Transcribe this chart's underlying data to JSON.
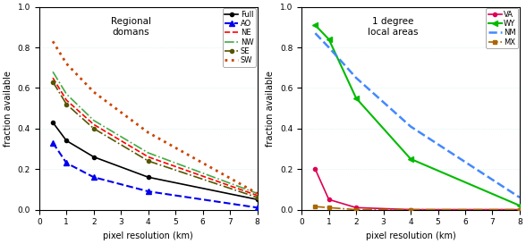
{
  "left": {
    "title": "Regional\ndomans",
    "xlabel": "pixel resolution (km)",
    "ylabel": "fraction available",
    "xlim": [
      0,
      8
    ],
    "ylim": [
      0,
      1
    ],
    "x_ticks": [
      0,
      1,
      2,
      3,
      4,
      5,
      6,
      7,
      8
    ],
    "y_ticks": [
      0,
      0.2,
      0.4,
      0.6,
      0.8,
      1.0
    ],
    "series": {
      "Full": {
        "x": [
          0.5,
          1,
          2,
          4,
          8
        ],
        "y": [
          0.43,
          0.34,
          0.26,
          0.16,
          0.05
        ],
        "color": "#000000",
        "linestyle": "-",
        "marker": "o",
        "markersize": 3,
        "linewidth": 1.2
      },
      "AO": {
        "x": [
          0.5,
          1,
          2,
          4,
          8
        ],
        "y": [
          0.33,
          0.23,
          0.16,
          0.09,
          0.01
        ],
        "color": "#0000ee",
        "linestyle": "--",
        "marker": "^",
        "markersize": 4,
        "linewidth": 1.5
      },
      "NE": {
        "x": [
          0.5,
          1,
          2,
          4,
          8
        ],
        "y": [
          0.65,
          0.54,
          0.42,
          0.26,
          0.07
        ],
        "color": "#ff0000",
        "linestyle": "--",
        "marker": null,
        "markersize": 3,
        "linewidth": 1.2
      },
      "NW": {
        "x": [
          0.5,
          1,
          2,
          4,
          8
        ],
        "y": [
          0.68,
          0.57,
          0.44,
          0.28,
          0.08
        ],
        "color": "#44aa44",
        "linestyle": "-.",
        "marker": null,
        "markersize": 3,
        "linewidth": 1.2
      },
      "SE": {
        "x": [
          0.5,
          1,
          2,
          4,
          8
        ],
        "y": [
          0.63,
          0.52,
          0.4,
          0.24,
          0.06
        ],
        "color": "#555500",
        "linestyle": "-.",
        "marker": "o",
        "markersize": 3,
        "linewidth": 1.2
      },
      "SW": {
        "x": [
          0.5,
          1,
          2,
          4,
          8
        ],
        "y": [
          0.83,
          0.72,
          0.58,
          0.38,
          0.08
        ],
        "color": "#cc4400",
        "linestyle": ":",
        "marker": null,
        "markersize": 3,
        "linewidth": 2.0
      }
    },
    "legend_loc": "upper right"
  },
  "right": {
    "title": "1 degree\nlocal areas",
    "xlabel": "pixel resolution (km)",
    "ylabel": "fraction available",
    "xlim": [
      0,
      8
    ],
    "ylim": [
      0,
      1
    ],
    "x_ticks": [
      0,
      1,
      2,
      3,
      4,
      5,
      6,
      7,
      8
    ],
    "y_ticks": [
      0,
      0.2,
      0.4,
      0.6,
      0.8,
      1.0
    ],
    "series": {
      "VA": {
        "x": [
          0.5,
          1,
          2,
          4,
          8
        ],
        "y": [
          0.2,
          0.05,
          0.01,
          0.0,
          0.0
        ],
        "color": "#dd0055",
        "linestyle": "-",
        "marker": "o",
        "markersize": 3,
        "linewidth": 1.2
      },
      "WY": {
        "x": [
          0.5,
          1,
          2,
          4,
          8
        ],
        "y": [
          0.91,
          0.84,
          0.55,
          0.25,
          0.02
        ],
        "color": "#00bb00",
        "linestyle": "-",
        "marker": "<",
        "markersize": 4,
        "linewidth": 1.5
      },
      "NM": {
        "x": [
          0.5,
          1,
          2,
          4,
          8
        ],
        "y": [
          0.87,
          0.8,
          0.65,
          0.41,
          0.06
        ],
        "color": "#4488ff",
        "linestyle": "--",
        "marker": null,
        "markersize": 3,
        "linewidth": 1.8
      },
      "MX": {
        "x": [
          0.5,
          1,
          2,
          4,
          8
        ],
        "y": [
          0.015,
          0.01,
          0.0,
          0.0,
          0.0
        ],
        "color": "#aa6600",
        "linestyle": "-.",
        "marker": "s",
        "markersize": 3,
        "linewidth": 1.2
      }
    },
    "legend_loc": "upper right"
  }
}
